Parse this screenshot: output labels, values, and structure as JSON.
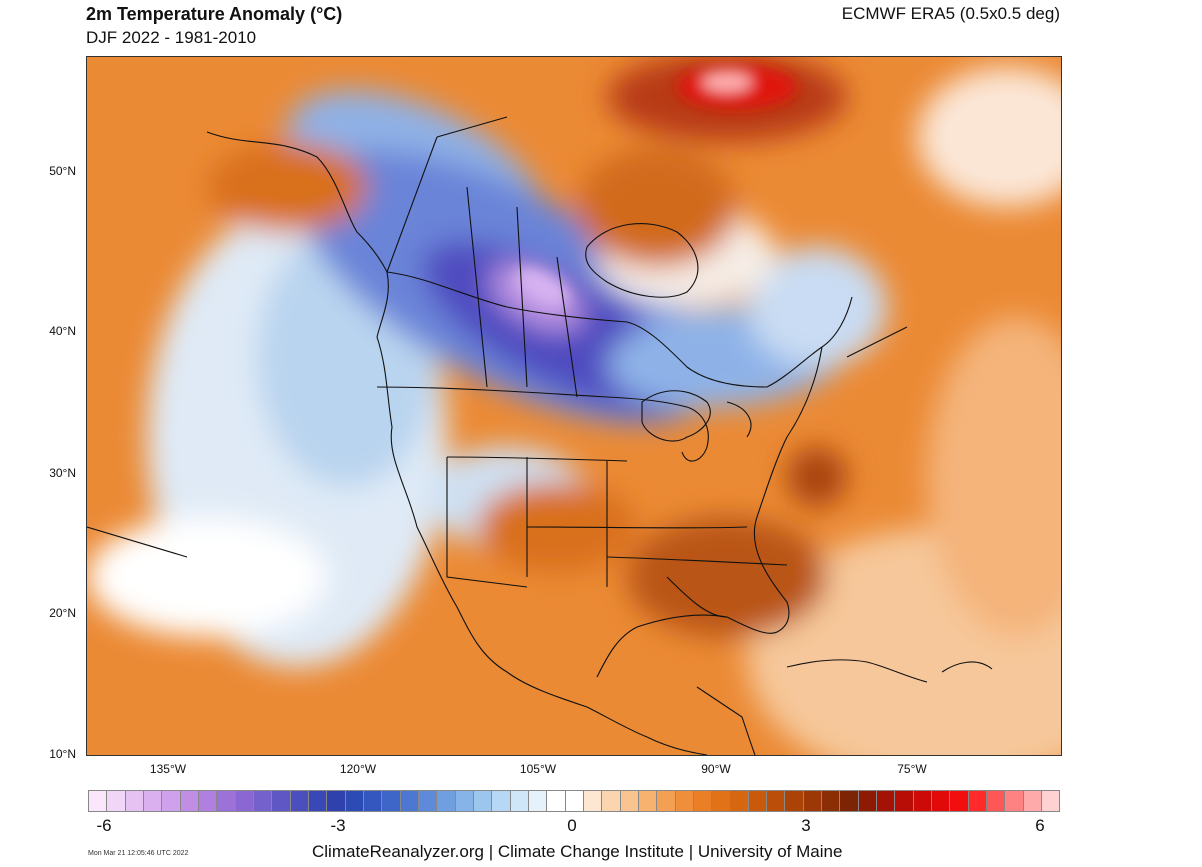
{
  "header": {
    "title": "2m Temperature Anomaly (°C)",
    "subtitle": "DJF 2022 - 1981-2010",
    "source": "ECMWF ERA5 (0.5x0.5 deg)"
  },
  "map": {
    "lat_labels": [
      "50°N",
      "40°N",
      "30°N",
      "20°N",
      "10°N"
    ],
    "lon_labels": [
      "135°W",
      "120°W",
      "105°W",
      "90°W",
      "75°W"
    ]
  },
  "colorbar": {
    "ticks": [
      "-6",
      "-3",
      "0",
      "3",
      "6"
    ],
    "colors": [
      "#fbe6fb",
      "#f2d6f7",
      "#e6c2f2",
      "#dbb0ef",
      "#cfa0ec",
      "#c18ee6",
      "#b07fe0",
      "#9c72d8",
      "#8a67d2",
      "#7461cc",
      "#5f58c4",
      "#4a4fbd",
      "#3a47b6",
      "#2f41ad",
      "#2c4bb5",
      "#3456bf",
      "#3e66c9",
      "#4c78d1",
      "#5d8bd9",
      "#709fe0",
      "#86b3e8",
      "#9dc6ef",
      "#b6d8f4",
      "#cfe6f8",
      "#e6f2fb",
      "#ffffff",
      "#ffffff",
      "#fde7d2",
      "#fbd5b0",
      "#f9c48f",
      "#f7b26f",
      "#f4a052",
      "#f08f3b",
      "#eb7f27",
      "#e17218",
      "#d6660f",
      "#c95a0b",
      "#bb4e09",
      "#ab4307",
      "#9c3806",
      "#8c2e05",
      "#7c2404",
      "#8e1a04",
      "#a31205",
      "#b80c06",
      "#cc0a08",
      "#e1090a",
      "#f20d0e",
      "#ff2b2b",
      "#ff5757",
      "#ff8282",
      "#ffaaaa",
      "#ffd2d2"
    ]
  },
  "footer": {
    "text": "ClimateReanalyzer.org | Climate Change Institute | University of Maine",
    "timestamp": "Mon Mar 21 12:05:46 UTC 2022"
  }
}
